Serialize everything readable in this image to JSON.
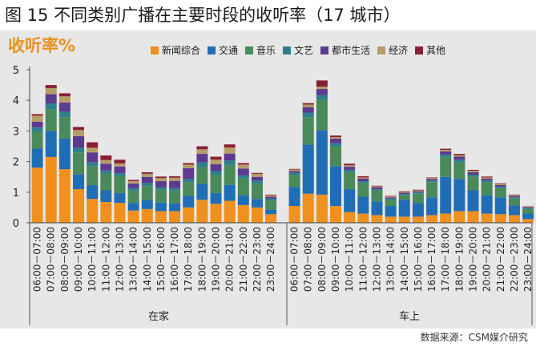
{
  "figure": {
    "title": "图 15 不同类别广播在主要时段的收听率（17 城市）",
    "source": "数据来源：CSM媒介研究"
  },
  "chart_data": {
    "type": "bar",
    "stacked": true,
    "title": "收听率%",
    "ylim": [
      0,
      5
    ],
    "yticks": [
      0,
      1,
      2,
      3,
      4,
      5
    ],
    "groups": [
      "在家",
      "车上"
    ],
    "categories": [
      "06:00－07:00",
      "07:00－08:00",
      "08:00－09:00",
      "09:00－10:00",
      "10:00－11:00",
      "11:00－12:00",
      "12:00－13:00",
      "13:00－14:00",
      "14:00－15:00",
      "15:00－16:00",
      "16:00－17:00",
      "17:00－18:00",
      "18:00－19:00",
      "19:00－20:00",
      "20:00－21:00",
      "21:00－22:00",
      "22:00－23:00",
      "23:00－24:00"
    ],
    "series": [
      {
        "name": "新闻综合",
        "color": "#f0901e",
        "values_home": [
          1.8,
          2.15,
          1.75,
          1.1,
          0.78,
          0.68,
          0.65,
          0.4,
          0.45,
          0.38,
          0.38,
          0.5,
          0.75,
          0.62,
          0.72,
          0.58,
          0.5,
          0.28
        ],
        "values_car": [
          0.55,
          0.95,
          0.92,
          0.55,
          0.35,
          0.3,
          0.25,
          0.2,
          0.2,
          0.2,
          0.25,
          0.3,
          0.38,
          0.38,
          0.3,
          0.28,
          0.25,
          0.12
        ]
      },
      {
        "name": "交通",
        "color": "#1f6db5",
        "values_home": [
          0.62,
          0.85,
          1.0,
          0.48,
          0.45,
          0.38,
          0.32,
          0.25,
          0.3,
          0.28,
          0.25,
          0.38,
          0.52,
          0.35,
          0.52,
          0.32,
          0.28,
          0.15
        ],
        "values_car": [
          0.62,
          1.6,
          2.1,
          1.3,
          0.75,
          0.55,
          0.45,
          0.35,
          0.55,
          0.45,
          0.58,
          1.2,
          1.05,
          0.68,
          0.6,
          0.55,
          0.32,
          0.18
        ]
      },
      {
        "name": "音乐",
        "color": "#4a8a5a",
        "values_home": [
          0.55,
          0.7,
          0.7,
          0.72,
          0.62,
          0.55,
          0.55,
          0.4,
          0.45,
          0.42,
          0.42,
          0.45,
          0.55,
          0.6,
          0.65,
          0.55,
          0.5,
          0.3
        ],
        "values_car": [
          0.4,
          0.9,
          1.0,
          0.65,
          0.55,
          0.45,
          0.35,
          0.2,
          0.15,
          0.3,
          0.5,
          0.65,
          0.55,
          0.45,
          0.42,
          0.3,
          0.22,
          0.15
        ]
      },
      {
        "name": "文艺",
        "color": "#2e7f8c",
        "values_home": [
          0.15,
          0.2,
          0.18,
          0.15,
          0.13,
          0.1,
          0.1,
          0.08,
          0.1,
          0.08,
          0.08,
          0.1,
          0.15,
          0.12,
          0.15,
          0.1,
          0.1,
          0.06
        ],
        "values_car": [
          0.06,
          0.15,
          0.15,
          0.1,
          0.08,
          0.06,
          0.05,
          0.04,
          0.04,
          0.04,
          0.05,
          0.08,
          0.08,
          0.06,
          0.06,
          0.05,
          0.04,
          0.03
        ]
      },
      {
        "name": "都市生活",
        "color": "#5b3a8f",
        "values_home": [
          0.18,
          0.3,
          0.3,
          0.38,
          0.32,
          0.22,
          0.22,
          0.15,
          0.2,
          0.2,
          0.24,
          0.35,
          0.28,
          0.22,
          0.22,
          0.22,
          0.12,
          0.06
        ],
        "values_car": [
          0.06,
          0.18,
          0.2,
          0.15,
          0.1,
          0.08,
          0.06,
          0.04,
          0.04,
          0.04,
          0.05,
          0.1,
          0.1,
          0.08,
          0.06,
          0.05,
          0.04,
          0.03
        ]
      },
      {
        "name": "经济",
        "color": "#b49e6a",
        "values_home": [
          0.2,
          0.2,
          0.2,
          0.2,
          0.15,
          0.12,
          0.1,
          0.08,
          0.1,
          0.1,
          0.1,
          0.12,
          0.15,
          0.15,
          0.2,
          0.13,
          0.1,
          0.05
        ],
        "values_car": [
          0.05,
          0.08,
          0.08,
          0.05,
          0.05,
          0.04,
          0.03,
          0.03,
          0.03,
          0.03,
          0.03,
          0.05,
          0.05,
          0.05,
          0.04,
          0.04,
          0.03,
          0.02
        ]
      },
      {
        "name": "其他",
        "color": "#8a1f34",
        "values_home": [
          0.05,
          0.1,
          0.1,
          0.1,
          0.18,
          0.15,
          0.12,
          0.04,
          0.05,
          0.05,
          0.05,
          0.05,
          0.1,
          0.1,
          0.1,
          0.05,
          0.03,
          0.02
        ],
        "values_car": [
          0.02,
          0.05,
          0.2,
          0.05,
          0.05,
          0.04,
          0.02,
          0.02,
          0.02,
          0.02,
          0.02,
          0.04,
          0.04,
          0.03,
          0.03,
          0.02,
          0.02,
          0.01
        ]
      }
    ]
  }
}
